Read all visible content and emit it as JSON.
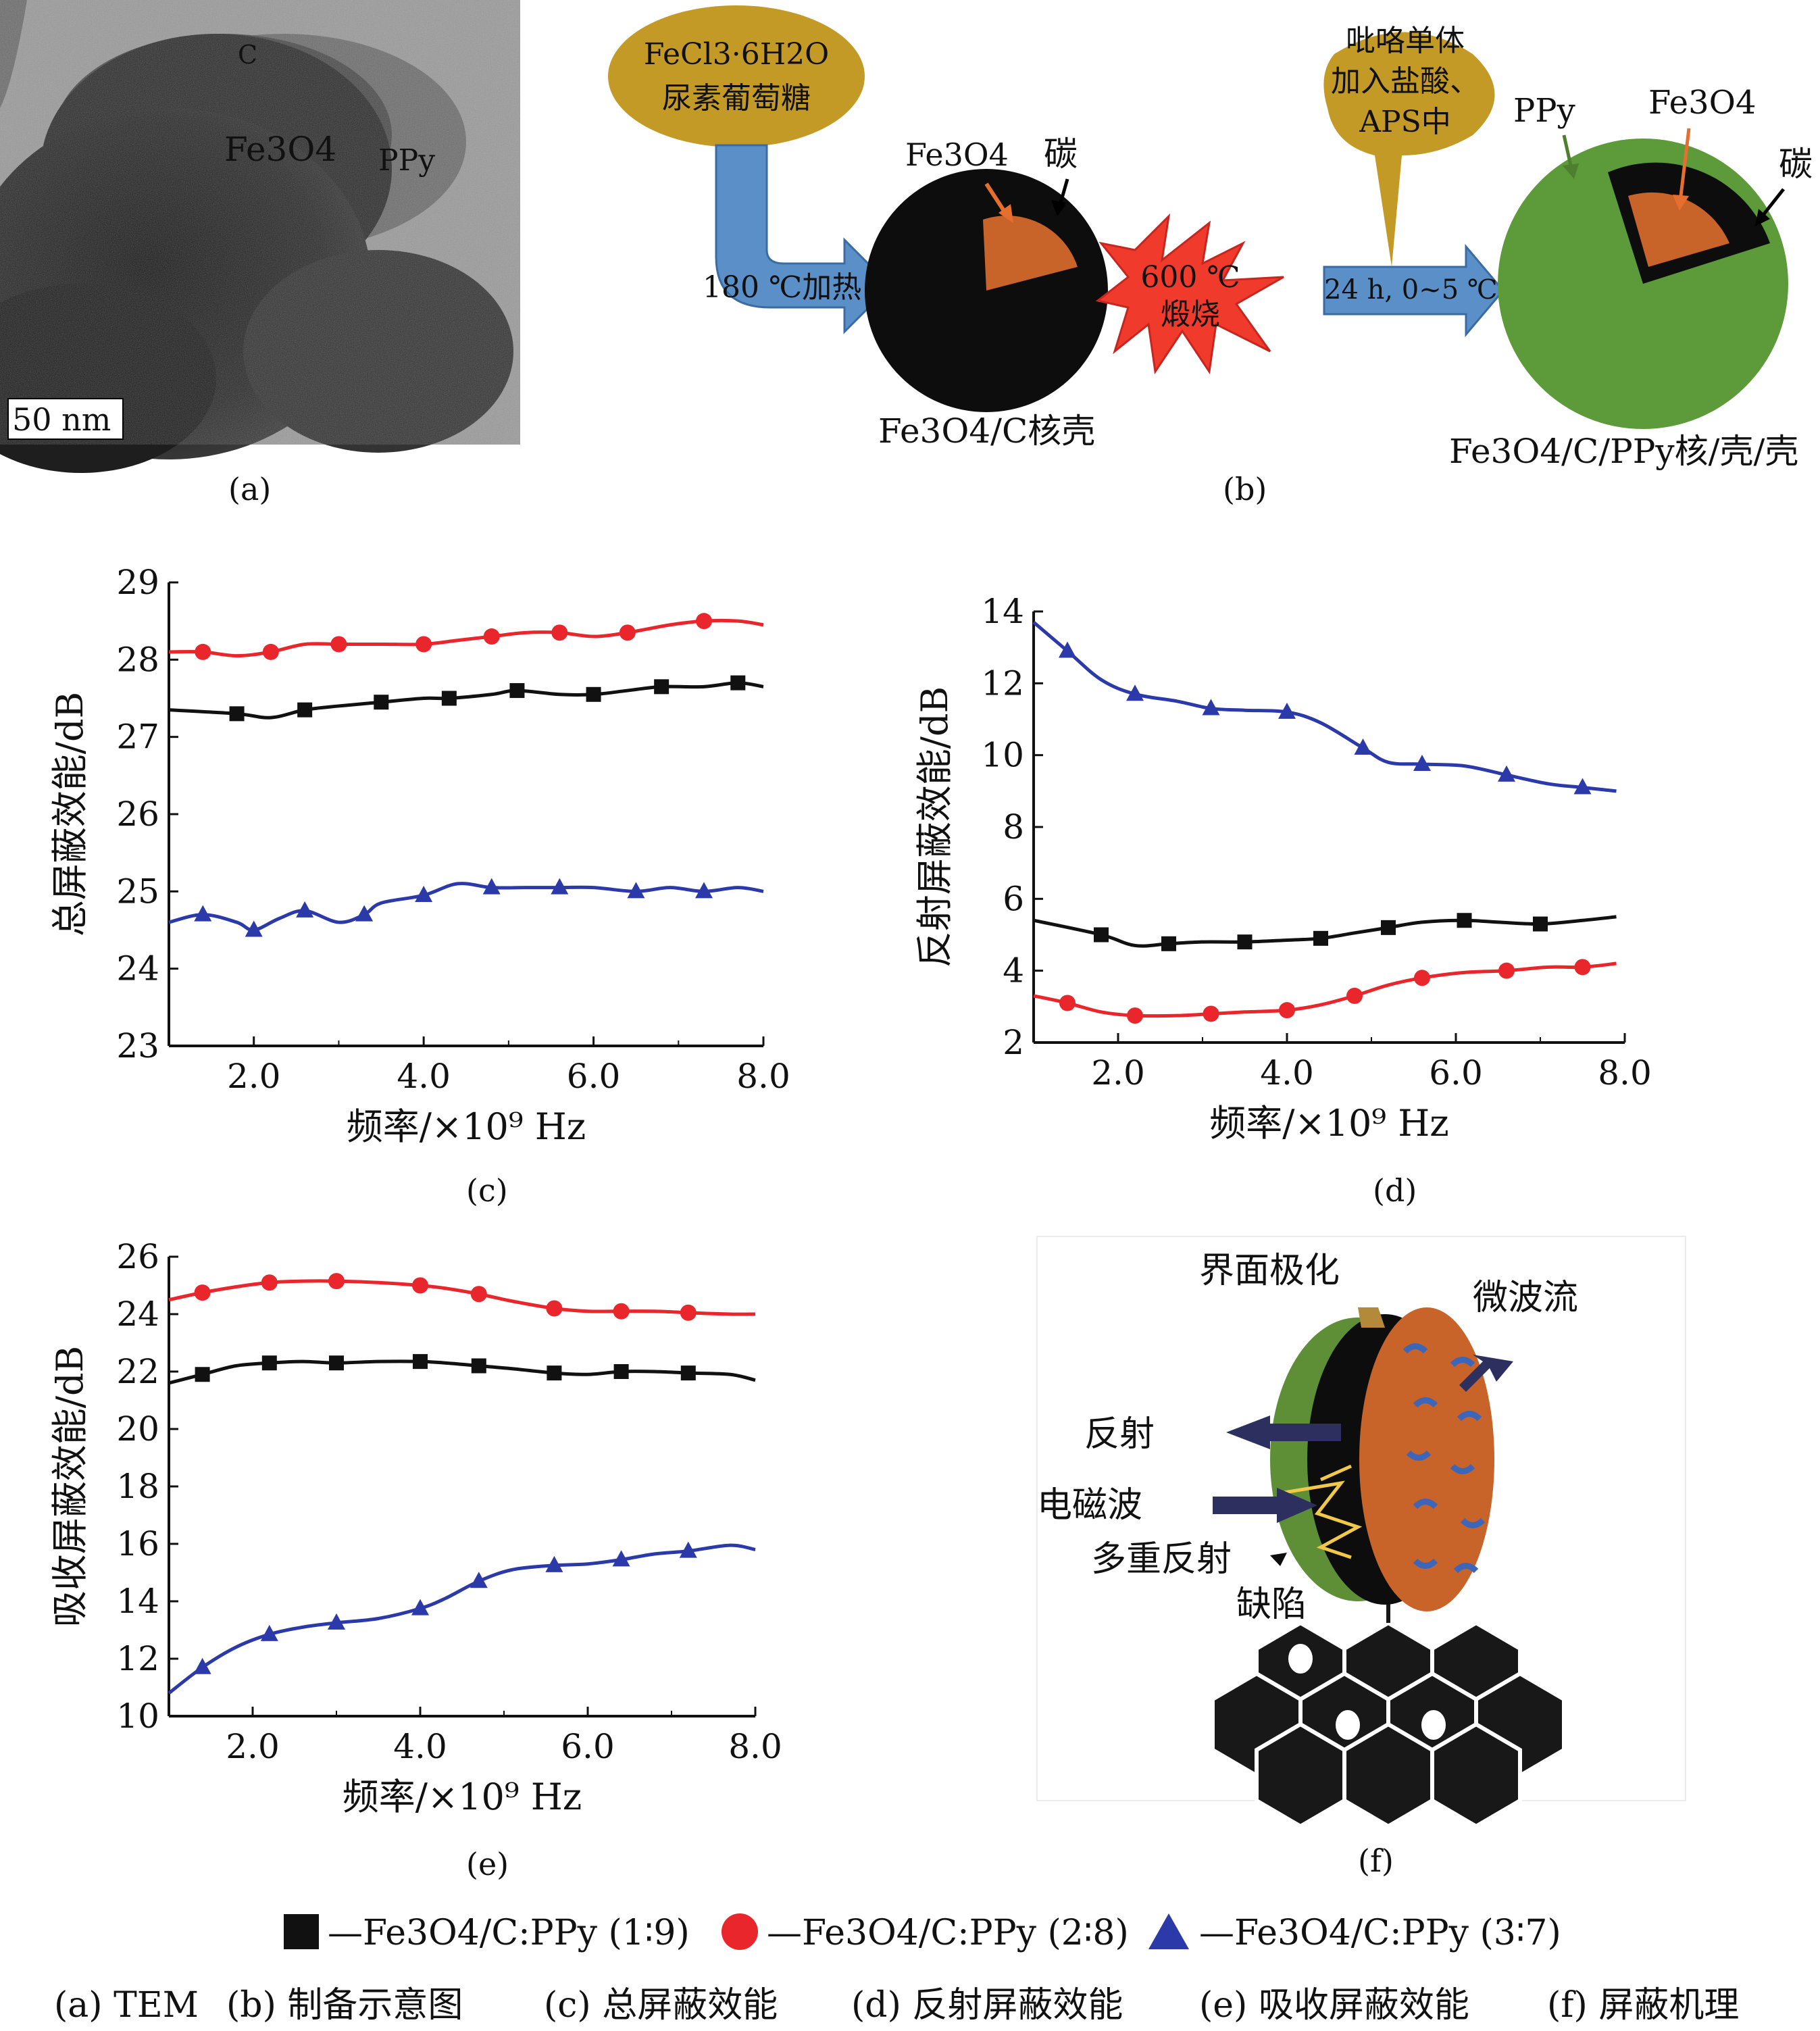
{
  "panel_a": {
    "label": "(a)",
    "scale_bar": "50 nm",
    "region_labels": {
      "c": "C",
      "fe3o4": "Fe3O4",
      "ppy": "PPy"
    }
  },
  "panel_b": {
    "label": "(b)",
    "precursor": [
      "FeCl3·6H2O",
      "尿素葡萄糖"
    ],
    "heat_step": "180 ℃加热",
    "core_shell_label": "Fe3O4/C核壳",
    "core_labels": {
      "fe3o4": "Fe3O4",
      "carbon": "碳"
    },
    "calcine": [
      "600 ℃",
      "煅烧"
    ],
    "reagent": [
      "吡咯单体",
      "加入盐酸、",
      "APS中"
    ],
    "react_step": "24 h, 0~5 ℃",
    "product_labels": {
      "ppy": "PPy",
      "fe3o4": "Fe3O4",
      "carbon": "碳"
    },
    "product_label": "Fe3O4/C/PPy核/壳/壳"
  },
  "panel_f": {
    "label": "(f)",
    "labels": {
      "interface": "界面极化",
      "microwave": "微波流",
      "reflect": "反射",
      "em_wave": "电磁波",
      "multi_reflect": "多重反射",
      "defect": "缺陷"
    }
  },
  "legend": [
    {
      "name": "—Fe3O4/C:PPy (1∶9)",
      "color": "#111111",
      "marker": "square"
    },
    {
      "name": "—Fe3O4/C:PPy (2∶8)",
      "color": "#e8262b",
      "marker": "circle"
    },
    {
      "name": "—Fe3O4/C:PPy (3∶7)",
      "color": "#2b3aa8",
      "marker": "triangle"
    }
  ],
  "caption": [
    "(a) TEM",
    "(b) 制备示意图",
    "(c) 总屏蔽效能",
    "(d) 反射屏蔽效能",
    "(e) 吸收屏蔽效能",
    "(f) 屏蔽机理"
  ],
  "chart_data": [
    {
      "panel": "(c)",
      "type": "line",
      "xlabel": "频率/×10⁹ Hz",
      "ylabel": "总屏蔽效能/dB",
      "xlim": [
        1.0,
        8.0
      ],
      "ylim": [
        23,
        29
      ],
      "xticks": [
        "2.0",
        "4.0",
        "6.0",
        "8.0"
      ],
      "yticks": [
        "23",
        "24",
        "25",
        "26",
        "27",
        "28",
        "29"
      ],
      "series": [
        {
          "legend_index": 0,
          "x": [
            1.0,
            1.8,
            2.2,
            2.6,
            3.0,
            3.5,
            4.0,
            4.3,
            4.8,
            5.1,
            5.6,
            6.0,
            6.4,
            6.8,
            7.3,
            7.7,
            8.0
          ],
          "y": [
            27.35,
            27.3,
            27.25,
            27.35,
            27.4,
            27.45,
            27.5,
            27.5,
            27.55,
            27.6,
            27.55,
            27.55,
            27.6,
            27.65,
            27.65,
            27.7,
            27.65
          ]
        },
        {
          "legend_index": 1,
          "x": [
            1.0,
            1.4,
            1.8,
            2.2,
            2.6,
            3.0,
            3.5,
            4.0,
            4.4,
            4.8,
            5.2,
            5.6,
            6.0,
            6.4,
            6.9,
            7.3,
            7.7,
            8.0
          ],
          "y": [
            28.1,
            28.1,
            28.05,
            28.1,
            28.2,
            28.2,
            28.2,
            28.2,
            28.25,
            28.3,
            28.35,
            28.35,
            28.3,
            28.35,
            28.45,
            28.5,
            28.5,
            28.45
          ]
        },
        {
          "legend_index": 2,
          "x": [
            1.0,
            1.4,
            1.8,
            2.0,
            2.3,
            2.6,
            3.0,
            3.3,
            3.5,
            4.0,
            4.4,
            4.8,
            5.2,
            5.6,
            6.0,
            6.5,
            6.9,
            7.3,
            7.7,
            8.0
          ],
          "y": [
            24.6,
            24.7,
            24.6,
            24.5,
            24.65,
            24.75,
            24.6,
            24.7,
            24.85,
            24.95,
            25.1,
            25.05,
            25.05,
            25.05,
            25.05,
            25.0,
            25.05,
            25.0,
            25.05,
            25.0
          ]
        }
      ]
    },
    {
      "panel": "(d)",
      "type": "line",
      "xlabel": "频率/×10⁹ Hz",
      "ylabel": "反射屏蔽效能/dB",
      "xlim": [
        1.0,
        8.0
      ],
      "ylim": [
        2,
        14
      ],
      "xticks": [
        "2.0",
        "4.0",
        "6.0",
        "8.0"
      ],
      "yticks": [
        "2",
        "4",
        "6",
        "8",
        "10",
        "12",
        "14"
      ],
      "series": [
        {
          "legend_index": 0,
          "x": [
            1.0,
            1.8,
            2.2,
            2.6,
            3.0,
            3.5,
            4.0,
            4.4,
            4.8,
            5.2,
            5.6,
            6.1,
            6.5,
            7.0,
            7.5,
            7.9
          ],
          "y": [
            5.4,
            5.0,
            4.7,
            4.75,
            4.8,
            4.8,
            4.85,
            4.9,
            5.05,
            5.2,
            5.35,
            5.4,
            5.35,
            5.3,
            5.4,
            5.5
          ]
        },
        {
          "legend_index": 1,
          "x": [
            1.0,
            1.4,
            1.8,
            2.2,
            2.7,
            3.1,
            3.5,
            4.0,
            4.4,
            4.8,
            5.2,
            5.6,
            6.1,
            6.6,
            7.1,
            7.5,
            7.9
          ],
          "y": [
            3.3,
            3.1,
            2.85,
            2.75,
            2.75,
            2.8,
            2.85,
            2.9,
            3.05,
            3.3,
            3.6,
            3.8,
            3.95,
            4.0,
            4.1,
            4.1,
            4.2
          ]
        },
        {
          "legend_index": 2,
          "x": [
            1.0,
            1.4,
            1.8,
            2.2,
            2.7,
            3.1,
            3.5,
            4.0,
            4.4,
            4.9,
            5.2,
            5.6,
            6.1,
            6.6,
            7.1,
            7.5,
            7.9
          ],
          "y": [
            13.7,
            12.9,
            12.1,
            11.7,
            11.5,
            11.3,
            11.25,
            11.2,
            10.9,
            10.2,
            9.8,
            9.75,
            9.7,
            9.45,
            9.2,
            9.1,
            9.0
          ]
        }
      ]
    },
    {
      "panel": "(e)",
      "type": "line",
      "xlabel": "频率/×10⁹ Hz",
      "ylabel": "吸收屏蔽效能/dB",
      "xlim": [
        1.0,
        8.0
      ],
      "ylim": [
        10,
        26
      ],
      "xticks": [
        "2.0",
        "4.0",
        "6.0",
        "8.0"
      ],
      "yticks": [
        "10",
        "12",
        "14",
        "16",
        "18",
        "20",
        "22",
        "24",
        "26"
      ],
      "series": [
        {
          "legend_index": 0,
          "x": [
            1.0,
            1.4,
            1.8,
            2.2,
            2.6,
            3.0,
            3.5,
            4.0,
            4.3,
            4.7,
            5.1,
            5.6,
            6.0,
            6.4,
            6.8,
            7.2,
            7.7,
            8.0
          ],
          "y": [
            21.6,
            21.9,
            22.2,
            22.3,
            22.35,
            22.3,
            22.35,
            22.35,
            22.3,
            22.2,
            22.1,
            21.95,
            21.9,
            22.0,
            22.0,
            21.95,
            21.9,
            21.7
          ]
        },
        {
          "legend_index": 1,
          "x": [
            1.0,
            1.4,
            1.8,
            2.2,
            2.6,
            3.0,
            3.5,
            4.0,
            4.3,
            4.7,
            5.1,
            5.6,
            6.0,
            6.4,
            6.8,
            7.2,
            7.7,
            8.0
          ],
          "y": [
            24.5,
            24.75,
            24.95,
            25.1,
            25.15,
            25.15,
            25.1,
            25.0,
            24.9,
            24.7,
            24.45,
            24.2,
            24.1,
            24.1,
            24.1,
            24.05,
            24.0,
            24.0
          ]
        },
        {
          "legend_index": 2,
          "x": [
            1.0,
            1.4,
            1.8,
            2.2,
            2.6,
            3.0,
            3.5,
            4.0,
            4.3,
            4.7,
            5.1,
            5.6,
            6.0,
            6.4,
            6.8,
            7.2,
            7.7,
            8.0
          ],
          "y": [
            10.8,
            11.7,
            12.4,
            12.85,
            13.1,
            13.25,
            13.4,
            13.75,
            14.1,
            14.7,
            15.1,
            15.25,
            15.3,
            15.45,
            15.65,
            15.75,
            15.95,
            15.8
          ]
        }
      ]
    }
  ]
}
